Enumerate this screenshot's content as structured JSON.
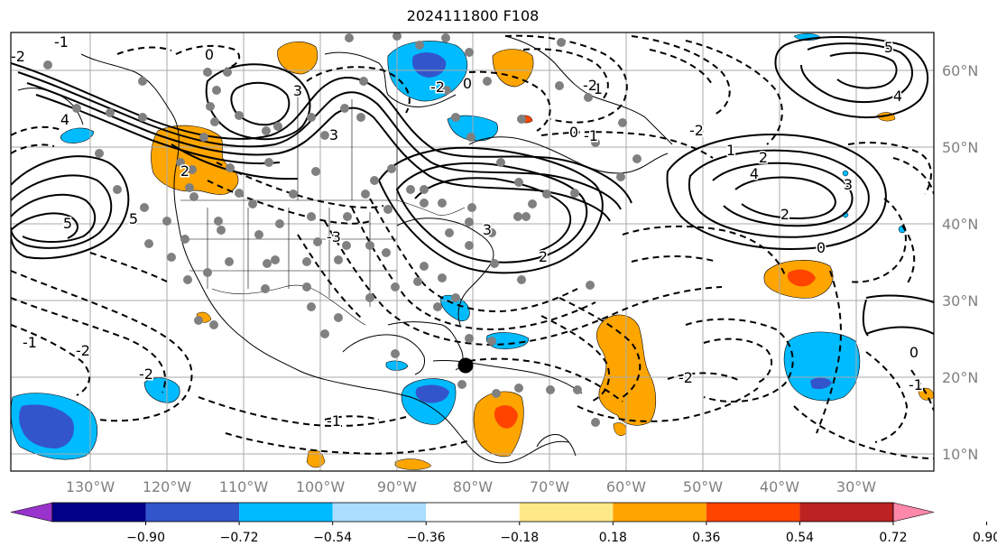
{
  "title": "2024111800 F108",
  "map": {
    "lon_labels": [
      "130°W",
      "120°W",
      "110°W",
      "100°W",
      "90°W",
      "80°W",
      "70°W",
      "60°W",
      "50°W",
      "40°W",
      "30°W"
    ],
    "lat_labels": [
      "60°N",
      "50°N",
      "40°N",
      "30°N",
      "20°N",
      "10°N"
    ],
    "contour_labels": [
      {
        "text": "0"
      },
      {
        "text": "-1"
      },
      {
        "text": "-2"
      },
      {
        "text": "3"
      },
      {
        "text": "3"
      },
      {
        "text": "-3"
      },
      {
        "text": "2"
      },
      {
        "text": "-2"
      },
      {
        "text": "-1"
      },
      {
        "text": "4"
      },
      {
        "text": "5"
      },
      {
        "text": "5"
      },
      {
        "text": "4"
      },
      {
        "text": "3"
      },
      {
        "text": "2"
      },
      {
        "text": "1"
      },
      {
        "text": "0"
      },
      {
        "text": "-1"
      },
      {
        "text": "-2"
      },
      {
        "text": "0"
      },
      {
        "text": "-2"
      },
      {
        "text": "-1"
      },
      {
        "text": "-2"
      },
      {
        "text": "2"
      },
      {
        "text": "0"
      },
      {
        "text": "-1"
      },
      {
        "text": "-2"
      },
      {
        "text": "5"
      },
      {
        "text": "4"
      },
      {
        "text": "0"
      },
      {
        "text": "-1"
      },
      {
        "text": "-2"
      },
      {
        "text": "3"
      },
      {
        "text": "2"
      }
    ]
  },
  "colorbar": {
    "tick_labels": [
      "−0.90",
      "−0.72",
      "−0.54",
      "−0.36",
      "−0.18",
      "0.18",
      "0.36",
      "0.54",
      "0.72",
      "0.90"
    ],
    "colors": [
      "#9933cc",
      "#000088",
      "#3355cc",
      "#00bbff",
      "#aaddff",
      "#ffffff",
      "#ffe888",
      "#ffa500",
      "#ff4400",
      "#bb2222",
      "#ff88aa"
    ]
  },
  "palette": {
    "neg_light": "#00bbff",
    "neg_dark": "#3355cc",
    "neg_darkest": "#000088",
    "pos_light": "#ffa500",
    "pos_dark": "#ff4400",
    "station": "#808080",
    "grid": "#aaaaaa",
    "axis_label": "#808080"
  }
}
